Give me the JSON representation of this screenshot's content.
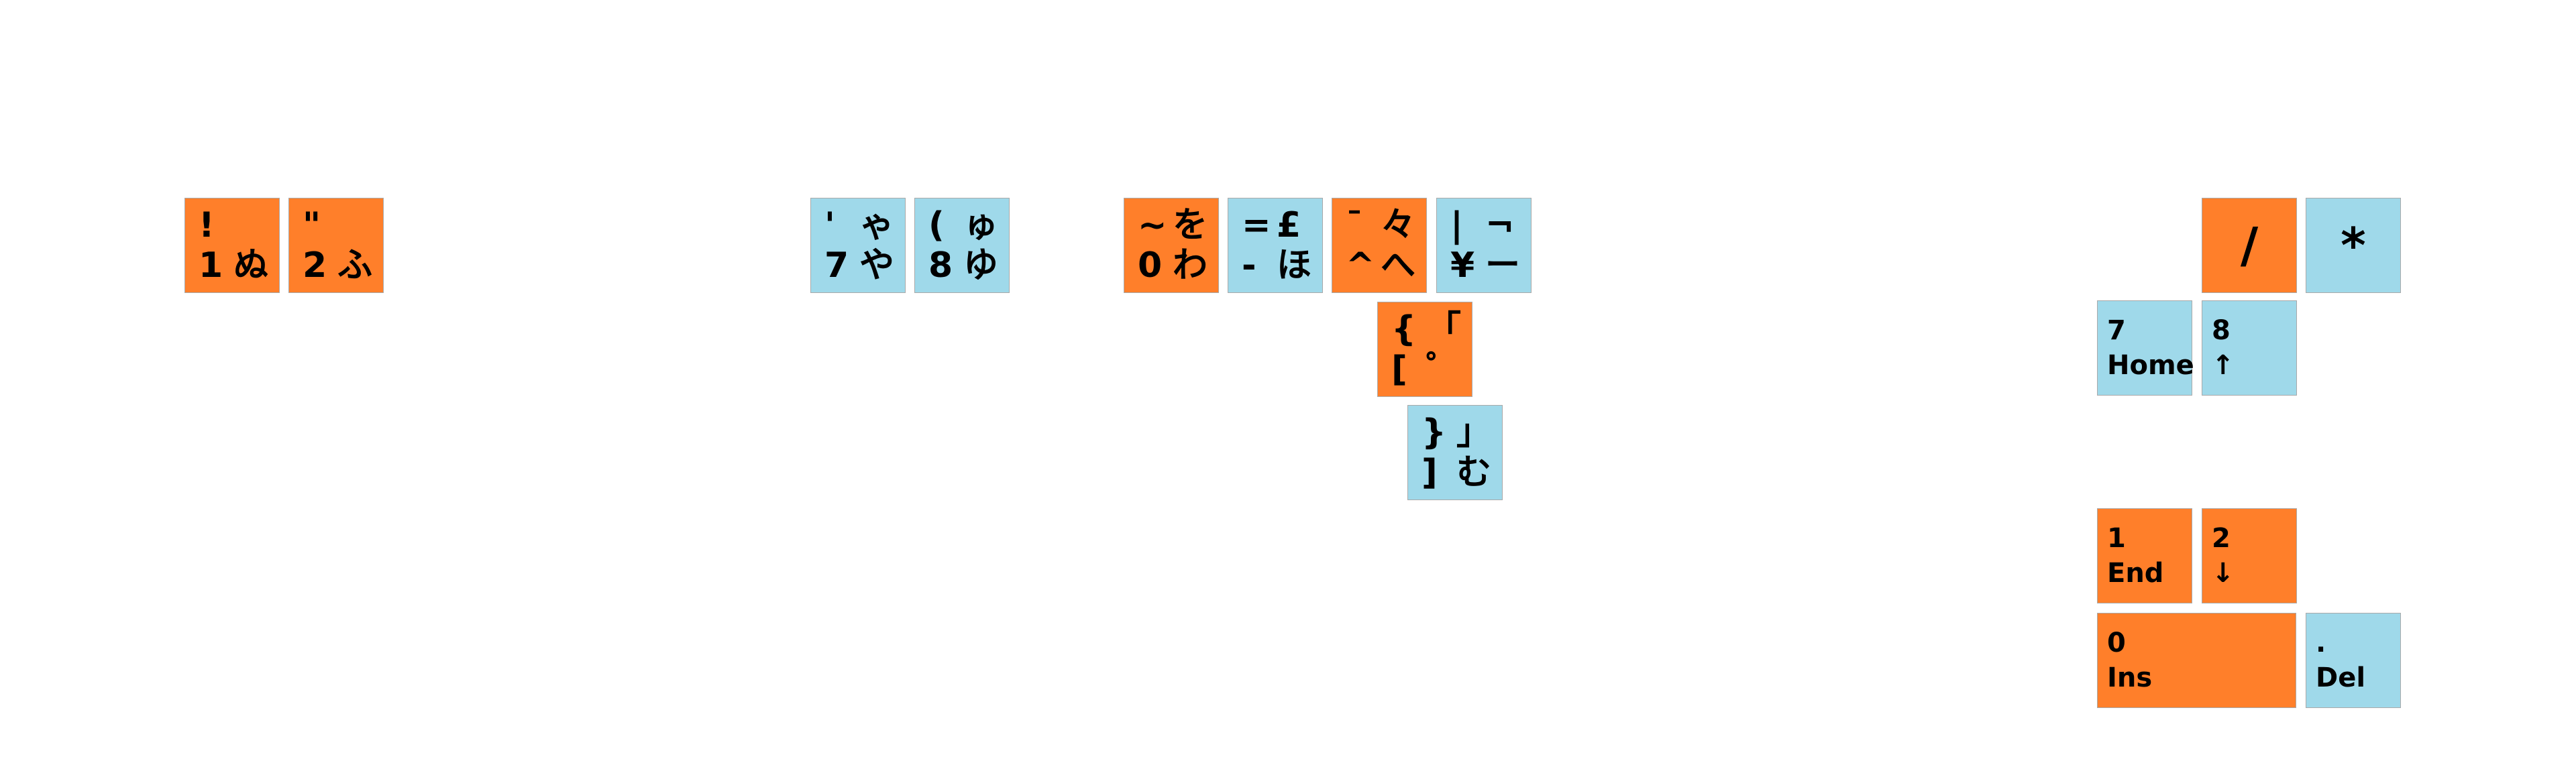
{
  "colors": {
    "orange": "#ff7f2a",
    "blue": "#9fd9ea",
    "border": "#a9a9a9",
    "text": "#000000"
  },
  "keys": [
    {
      "name": "key-1-nu",
      "color": "orange",
      "kind": "pair",
      "legends": {
        "tl": "!",
        "bl": "1",
        "br": "ぬ"
      }
    },
    {
      "name": "key-2-fu",
      "color": "orange",
      "kind": "pair",
      "legends": {
        "tl": "\"",
        "bl": "2",
        "br": "ふ"
      }
    },
    {
      "name": "key-7-ya",
      "color": "blue",
      "kind": "pair",
      "legends": {
        "tl": "'",
        "tr": "ゃ",
        "bl": "7",
        "br": "や"
      }
    },
    {
      "name": "key-8-yu",
      "color": "blue",
      "kind": "pair",
      "legends": {
        "tl": "(",
        "tr": "ゅ",
        "bl": "8",
        "br": "ゆ"
      }
    },
    {
      "name": "key-0-wa",
      "color": "orange",
      "kind": "pair",
      "legends": {
        "tl": "~",
        "tr": "を",
        "bl": "0",
        "br": "わ"
      }
    },
    {
      "name": "key-minus-ho",
      "color": "blue",
      "kind": "pair",
      "legends": {
        "tl": "=",
        "tr": "£",
        "bl": "-",
        "br": "ほ"
      }
    },
    {
      "name": "key-caret-he",
      "color": "orange",
      "kind": "pair",
      "legends": {
        "tl": "¯",
        "tr": "々",
        "bl": "^",
        "br": "へ"
      }
    },
    {
      "name": "key-yen",
      "color": "blue",
      "kind": "pair",
      "legends": {
        "tl": "|",
        "tr": "¬",
        "bl": "¥",
        "br": "ー"
      }
    },
    {
      "name": "key-bracket-open",
      "color": "orange",
      "kind": "pair",
      "legends": {
        "tl": "{",
        "tr": "「",
        "bl": "[",
        "br": "゜"
      }
    },
    {
      "name": "key-bracket-close",
      "color": "blue",
      "kind": "pair",
      "legends": {
        "tl": "}",
        "tr": "」",
        "bl": "]",
        "br": "む"
      }
    },
    {
      "name": "numpad-divide",
      "color": "orange",
      "kind": "big",
      "legends": {
        "c": "/"
      }
    },
    {
      "name": "numpad-multiply",
      "color": "blue",
      "kind": "big",
      "legends": {
        "c": "*"
      }
    },
    {
      "name": "numpad-7-home",
      "color": "blue",
      "kind": "lbl",
      "legends": {
        "l1": "7",
        "l2": "Home"
      }
    },
    {
      "name": "numpad-8-up",
      "color": "blue",
      "kind": "lbl",
      "legends": {
        "l1": "8",
        "l2": "↑"
      }
    },
    {
      "name": "numpad-1-end",
      "color": "orange",
      "kind": "lbl",
      "legends": {
        "l1": "1",
        "l2": "End"
      }
    },
    {
      "name": "numpad-2-down",
      "color": "orange",
      "kind": "lbl",
      "legends": {
        "l1": "2",
        "l2": "↓"
      }
    },
    {
      "name": "numpad-0-ins",
      "color": "orange",
      "kind": "lbl",
      "legends": {
        "l1": "0",
        "l2": "Ins"
      }
    },
    {
      "name": "numpad-dot-del",
      "color": "blue",
      "kind": "lbl",
      "legends": {
        "l1": ".",
        "l2": "Del"
      }
    }
  ]
}
